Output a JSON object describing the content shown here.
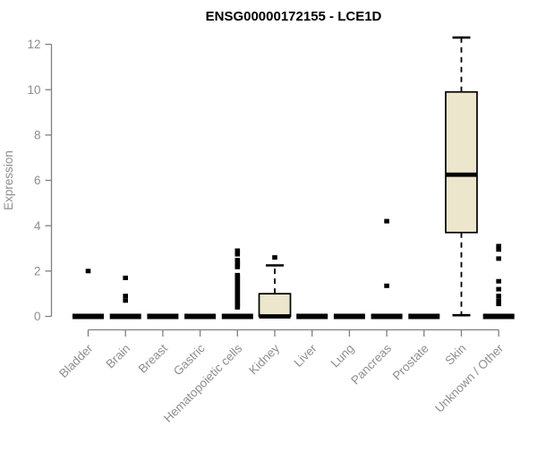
{
  "title": "ENSG00000172155 - LCE1D",
  "colors": {
    "box_fill": "#ece6cd",
    "box_stroke": "#000000",
    "median": "#000000",
    "outlier": "#000000",
    "axis_line": "#7f7f7f",
    "axis_text": "#8e8e8e",
    "title_text": "#000000",
    "background": "#ffffff"
  },
  "chart_data": {
    "type": "boxplot",
    "title": "ENSG00000172155 - LCE1D",
    "xlabel": "",
    "ylabel": "Expression",
    "ylim": [
      0,
      12.4
    ],
    "yticks": [
      0,
      2,
      4,
      6,
      8,
      10,
      12
    ],
    "grid": false,
    "legend": "none",
    "categories": [
      "Bladder",
      "Brain",
      "Breast",
      "Gastric",
      "Hematopoietic cells",
      "Kidney",
      "Liver",
      "Lung",
      "Pancreas",
      "Prostate",
      "Skin",
      "Unknown / Other"
    ],
    "boxes": [
      {
        "category": "Bladder",
        "whisker_low": 0,
        "q1": 0,
        "median": 0,
        "q3": 0,
        "whisker_high": 0,
        "outliers": [
          2.0
        ]
      },
      {
        "category": "Brain",
        "whisker_low": 0,
        "q1": 0,
        "median": 0,
        "q3": 0,
        "whisker_high": 0,
        "outliers": [
          1.7,
          0.9,
          0.7
        ]
      },
      {
        "category": "Breast",
        "whisker_low": 0,
        "q1": 0,
        "median": 0,
        "q3": 0,
        "whisker_high": 0,
        "outliers": []
      },
      {
        "category": "Gastric",
        "whisker_low": 0,
        "q1": 0,
        "median": 0,
        "q3": 0,
        "whisker_high": 0,
        "outliers": []
      },
      {
        "category": "Hematopoietic cells",
        "whisker_low": 0,
        "q1": 0,
        "median": 0,
        "q3": 0,
        "whisker_high": 0,
        "outliers": [
          2.9,
          2.74,
          2.48,
          2.38,
          2.28,
          2.18,
          1.82,
          1.74,
          1.66,
          1.58,
          1.5,
          1.42,
          1.34,
          1.26,
          1.18,
          1.1,
          1.02,
          0.94,
          0.86,
          0.78,
          0.7,
          0.62,
          0.54,
          0.46,
          0.4
        ]
      },
      {
        "category": "Kidney",
        "whisker_low": 0,
        "q1": 0,
        "median": 0,
        "q3": 1.0,
        "whisker_high": 2.25,
        "outliers": [
          2.6
        ]
      },
      {
        "category": "Liver",
        "whisker_low": 0,
        "q1": 0,
        "median": 0,
        "q3": 0,
        "whisker_high": 0,
        "outliers": []
      },
      {
        "category": "Lung",
        "whisker_low": 0,
        "q1": 0,
        "median": 0,
        "q3": 0,
        "whisker_high": 0,
        "outliers": []
      },
      {
        "category": "Pancreas",
        "whisker_low": 0,
        "q1": 0,
        "median": 0,
        "q3": 0,
        "whisker_high": 0,
        "outliers": [
          4.2,
          1.35
        ]
      },
      {
        "category": "Prostate",
        "whisker_low": 0,
        "q1": 0,
        "median": 0,
        "q3": 0,
        "whisker_high": 0,
        "outliers": []
      },
      {
        "category": "Skin",
        "whisker_low": 0.05,
        "q1": 3.7,
        "median": 6.25,
        "q3": 9.9,
        "whisker_high": 12.3,
        "outliers": []
      },
      {
        "category": "Unknown / Other",
        "whisker_low": 0,
        "q1": 0,
        "median": 0,
        "q3": 0,
        "whisker_high": 0,
        "outliers": [
          3.1,
          2.95,
          2.55,
          1.55,
          1.2,
          0.9,
          0.7,
          0.55
        ]
      }
    ]
  }
}
